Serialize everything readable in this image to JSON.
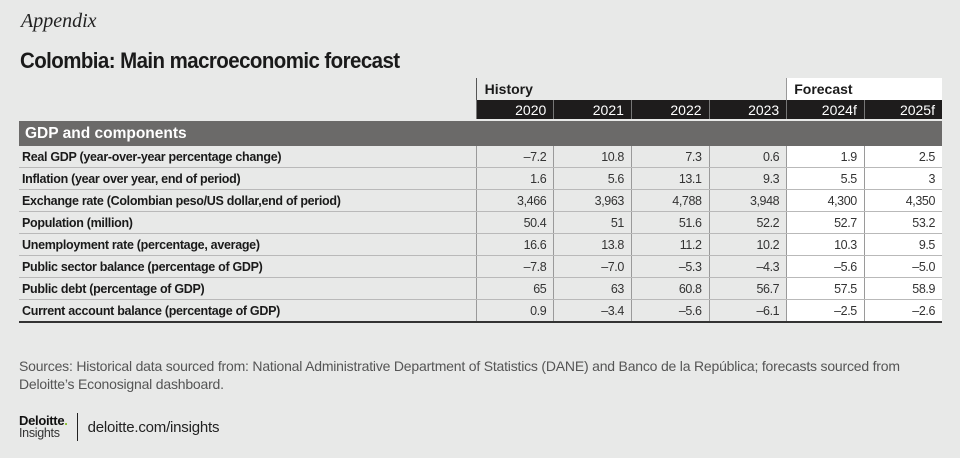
{
  "kicker": "Appendix",
  "title": "Colombia: Main macroeconomic forecast",
  "table": {
    "group_headers": {
      "history": "History",
      "forecast": "Forecast"
    },
    "years": [
      "2020",
      "2021",
      "2022",
      "2023",
      "2024f",
      "2025f"
    ],
    "section": "GDP and components",
    "rows": [
      {
        "label": "Real GDP (year-over-year percentage change)",
        "values": [
          "–7.2",
          "10.8",
          "7.3",
          "0.6",
          "1.9",
          "2.5"
        ]
      },
      {
        "label": "Inflation (year over year, end of period)",
        "values": [
          "1.6",
          "5.6",
          "13.1",
          "9.3",
          "5.5",
          "3"
        ]
      },
      {
        "label": "Exchange rate (Colombian peso/US dollar,end of period)",
        "values": [
          "3,466",
          "3,963",
          "4,788",
          "3,948",
          "4,300",
          "4,350"
        ]
      },
      {
        "label": "Population (million)",
        "values": [
          "50.4",
          "51",
          "51.6",
          "52.2",
          "52.7",
          "53.2"
        ]
      },
      {
        "label": "Unemployment rate (percentage, average)",
        "values": [
          "16.6",
          "13.8",
          "11.2",
          "10.2",
          "10.3",
          "9.5"
        ]
      },
      {
        "label": "Public sector balance (percentage of GDP)",
        "values": [
          "–7.8",
          "–7.0",
          "–5.3",
          "–4.3",
          "–5.6",
          "–5.0"
        ]
      },
      {
        "label": "Public debt (percentage of GDP)",
        "values": [
          "65",
          "63",
          "60.8",
          "56.7",
          "57.5",
          "58.9"
        ]
      },
      {
        "label": "Current account balance (percentage of GDP)",
        "values": [
          "0.9",
          "–3.4",
          "–5.6",
          "–6.1",
          "–2.5",
          "–2.6"
        ]
      }
    ]
  },
  "sources": "Sources: Historical data sourced from: National Administrative Department of Statistics (DANE) and Banco de la República; forecasts sourced from Deloitte’s Econosignal dashboard.",
  "footer": {
    "brand": "Deloitte",
    "brand_dot": ".",
    "brand_sub": "Insights",
    "url": "deloitte.com/insights",
    "brand_dot_color": "#86bc25"
  }
}
